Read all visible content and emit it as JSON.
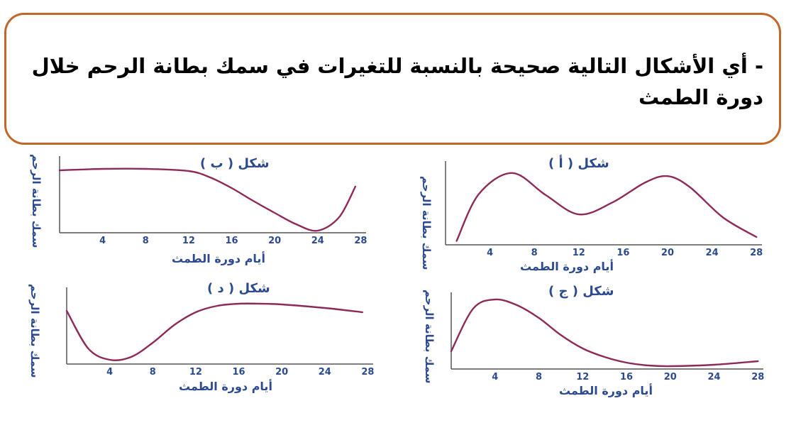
{
  "question": {
    "line1": "- أي الأشكال التالية صحيحة بالنسبة للتغيرات في سمك بطانة الرحم خلال",
    "line2": "دورة الطمث"
  },
  "colors": {
    "curve": "#8e2a5a",
    "axis": "#555555",
    "text": "#2c4a8f",
    "border": "#c0682b"
  },
  "chart_data": [
    {
      "type": "line",
      "title": "شكل ( أ )",
      "xlabel": "أيام دورة الطمث",
      "ylabel": "سمك بطانة الرحم",
      "xticks": [
        4,
        8,
        12,
        16,
        20,
        24,
        28
      ],
      "xlim": [
        0,
        28.5
      ],
      "ylim": [
        0,
        10
      ],
      "x": [
        1,
        3,
        6,
        9,
        12,
        15,
        18,
        20,
        22,
        25,
        28
      ],
      "y": [
        0.5,
        6.5,
        9.2,
        6.4,
        3.9,
        5.4,
        8.0,
        8.8,
        7.4,
        3.5,
        1.0
      ]
    },
    {
      "type": "line",
      "title": "شكل ( ب )",
      "xlabel": "أيام دورة الطمث",
      "ylabel": "سمك بطانة الرحم",
      "xticks": [
        4,
        8,
        12,
        16,
        20,
        24,
        28
      ],
      "xlim": [
        0,
        28.5
      ],
      "ylim": [
        0,
        10
      ],
      "x": [
        0,
        4,
        8,
        12,
        14,
        16,
        18,
        20,
        22,
        24,
        26,
        27.5
      ],
      "y": [
        8.8,
        9.0,
        9.0,
        8.7,
        7.8,
        6.3,
        4.5,
        2.8,
        1.2,
        0.3,
        2.2,
        6.5
      ]
    },
    {
      "type": "line",
      "title": "شكل ( ج )",
      "xlabel": "أيام دورة الطمث",
      "ylabel": "سمك بطانة الرحم",
      "xticks": [
        4,
        8,
        12,
        16,
        20,
        24,
        28
      ],
      "xlim": [
        0,
        28.5
      ],
      "ylim": [
        0,
        10
      ],
      "x": [
        0,
        2,
        4,
        6,
        8,
        10,
        12,
        14,
        16,
        18,
        20,
        24,
        28
      ],
      "y": [
        2.5,
        8.5,
        9.8,
        9.0,
        7.2,
        4.8,
        2.9,
        1.7,
        0.9,
        0.5,
        0.4,
        0.6,
        1.1
      ]
    },
    {
      "type": "line",
      "title": "شكل ( د )",
      "xlabel": "أيام دورة الطمث",
      "ylabel": "سمك بطانة الرحم",
      "xticks": [
        4,
        8,
        12,
        16,
        20,
        24,
        28
      ],
      "xlim": [
        0,
        28.5
      ],
      "ylim": [
        0,
        10
      ],
      "x": [
        0,
        2,
        4,
        6,
        8,
        10,
        12,
        14,
        16,
        18,
        20,
        24,
        27.5
      ],
      "y": [
        7.5,
        2.2,
        0.6,
        1.0,
        3.0,
        5.5,
        7.3,
        8.2,
        8.5,
        8.5,
        8.4,
        7.9,
        7.3
      ]
    }
  ]
}
